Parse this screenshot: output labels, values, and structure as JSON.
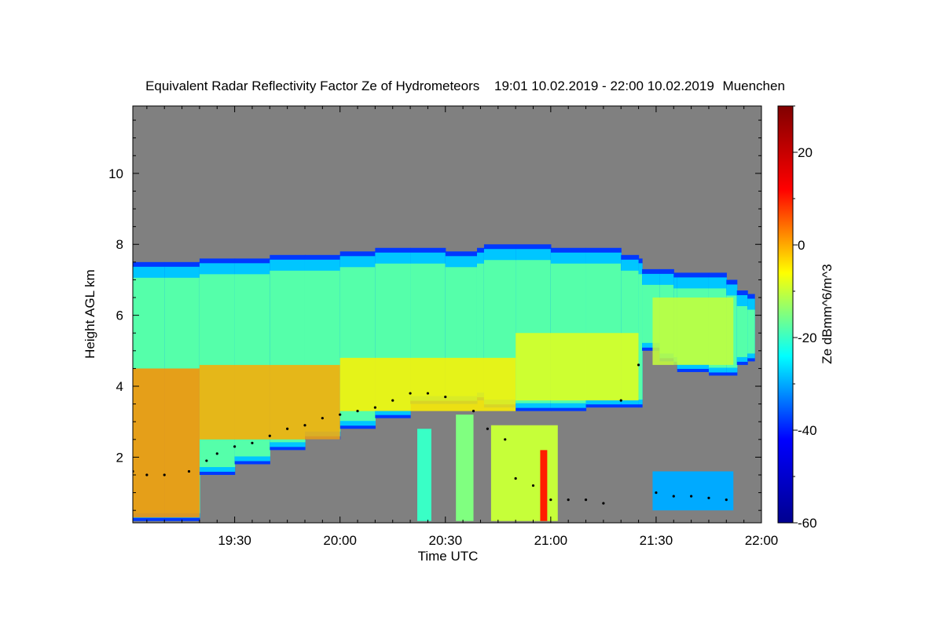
{
  "chart_data": {
    "type": "heatmap",
    "title": "Equivalent Radar Reflectivity Factor Ze of Hydrometeors",
    "period": "19:01 10.02.2019 - 22:00 10.02.2019",
    "location": "Muenchen",
    "xlabel": "Time UTC",
    "ylabel": "Height AGL km",
    "colorbar_label": "Ze dBmm^6/m^3",
    "x_unit": "minutes_of_day",
    "xlim": [
      1141,
      1320
    ],
    "x_ticks": [
      1170,
      1200,
      1230,
      1260,
      1290,
      1320
    ],
    "x_tick_labels": [
      "19:30",
      "20:00",
      "20:30",
      "21:00",
      "21:30",
      "22:00"
    ],
    "ylim": [
      0.15,
      11.9
    ],
    "y_ticks": [
      2,
      4,
      6,
      8,
      10
    ],
    "y_tick_labels": [
      "2",
      "4",
      "6",
      "8",
      "10"
    ],
    "clim": [
      -60,
      30
    ],
    "colorbar_ticks": [
      -60,
      -40,
      -20,
      0,
      20
    ],
    "colorbar_tick_labels": [
      "-60",
      "-40",
      "-20",
      "0",
      "20"
    ],
    "colormap": [
      "#00008f",
      "#0000ff",
      "#00ffff",
      "#ffff00",
      "#ff0000",
      "#800000"
    ],
    "no_data_color": "#808080",
    "echo_top": {
      "x": [
        1141,
        1150,
        1160,
        1170,
        1180,
        1190,
        1200,
        1210,
        1220,
        1230,
        1239,
        1241,
        1250,
        1260,
        1270,
        1280,
        1285,
        1286,
        1291,
        1295,
        1296,
        1305,
        1310,
        1313,
        1316,
        1318
      ],
      "top_km": [
        7.4,
        7.5,
        7.4,
        7.6,
        7.6,
        7.7,
        7.7,
        7.8,
        7.9,
        7.8,
        7.7,
        7.9,
        8.0,
        7.9,
        7.9,
        7.7,
        7.6,
        7.3,
        7.3,
        7.1,
        7.2,
        7.2,
        7.0,
        6.7,
        6.6,
        6.5
      ],
      "base_km": [
        0.2,
        0.2,
        1.5,
        1.8,
        2.2,
        2.5,
        2.8,
        3.1,
        3.5,
        3.5,
        3.6,
        3.6,
        3.4,
        3.3,
        3.4,
        3.4,
        3.4,
        5.3,
        5.0,
        4.7,
        4.6,
        4.4,
        4.3,
        4.6,
        4.7,
        4.9
      ]
    },
    "core_segments": [
      {
        "x": [
          1141,
          1160
        ],
        "base_km": 0.3,
        "top_km": 4.5,
        "ze": 2
      },
      {
        "x": [
          1160,
          1200
        ],
        "base_km": 2.5,
        "top_km": 4.6,
        "ze": 0
      },
      {
        "x": [
          1200,
          1250
        ],
        "base_km": 3.3,
        "top_km": 4.8,
        "ze": -5
      },
      {
        "x": [
          1250,
          1285
        ],
        "base_km": 3.6,
        "top_km": 5.5,
        "ze": -8
      },
      {
        "x": [
          1289,
          1312
        ],
        "base_km": 4.6,
        "top_km": 6.5,
        "ze": -10
      }
    ],
    "low_echo_segments": [
      {
        "x": [
          1222,
          1226
        ],
        "base_km": 0.2,
        "top_km": 2.8,
        "ze": -20
      },
      {
        "x": [
          1233,
          1238
        ],
        "base_km": 0.2,
        "top_km": 3.2,
        "ze": -15
      },
      {
        "x": [
          1243,
          1262
        ],
        "base_km": 0.2,
        "top_km": 2.9,
        "ze": -10
      },
      {
        "x": [
          1257,
          1259
        ],
        "base_km": 0.2,
        "top_km": 2.2,
        "ze": 10
      },
      {
        "x": [
          1289,
          1312
        ],
        "base_km": 0.5,
        "top_km": 1.6,
        "ze": -30
      }
    ],
    "cloud_base_points": {
      "x": [
        1141,
        1145,
        1150,
        1157,
        1162,
        1165,
        1170,
        1175,
        1180,
        1185,
        1190,
        1195,
        1200,
        1205,
        1210,
        1215,
        1220,
        1225,
        1230,
        1238,
        1242,
        1247,
        1250,
        1255,
        1260,
        1265,
        1270,
        1275,
        1280,
        1285,
        1290,
        1295,
        1300,
        1305,
        1310
      ],
      "y_km": [
        1.6,
        1.5,
        1.5,
        1.6,
        1.9,
        2.1,
        2.3,
        2.4,
        2.6,
        2.8,
        2.9,
        3.1,
        3.2,
        3.3,
        3.4,
        3.6,
        3.8,
        3.8,
        3.7,
        3.3,
        2.8,
        2.5,
        1.4,
        1.2,
        0.8,
        0.8,
        0.8,
        0.7,
        3.6,
        4.6,
        1.0,
        0.9,
        0.9,
        0.85,
        0.8
      ]
    }
  }
}
